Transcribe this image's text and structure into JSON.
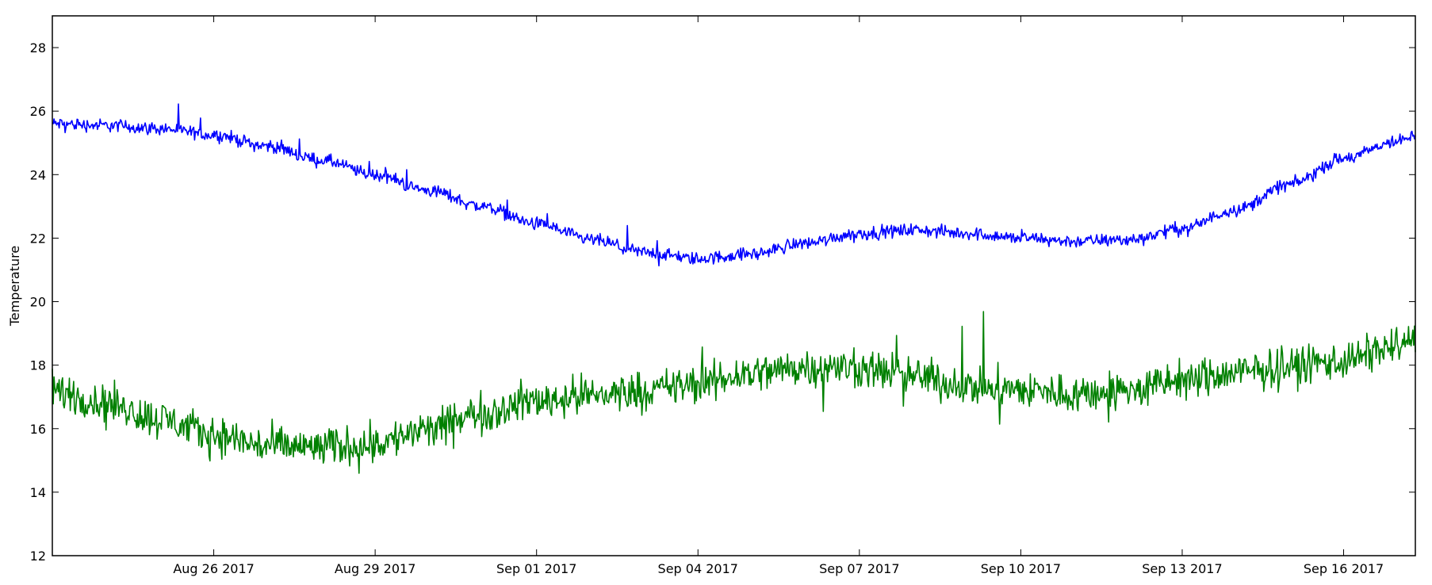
{
  "chart_data": {
    "type": "line",
    "title": "",
    "xlabel": "",
    "ylabel": "Temperature",
    "x_type": "date",
    "xlim": [
      "2017-08-23T00:00",
      "2017-09-17T08:00"
    ],
    "ylim": [
      12,
      29
    ],
    "grid": false,
    "x_ticks": [
      {
        "date": "2017-08-26",
        "label": "Aug 26 2017"
      },
      {
        "date": "2017-08-29",
        "label": "Aug 29 2017"
      },
      {
        "date": "2017-09-01",
        "label": "Sep 01 2017"
      },
      {
        "date": "2017-09-04",
        "label": "Sep 04 2017"
      },
      {
        "date": "2017-09-07",
        "label": "Sep 07 2017"
      },
      {
        "date": "2017-09-10",
        "label": "Sep 10 2017"
      },
      {
        "date": "2017-09-13",
        "label": "Sep 13 2017"
      },
      {
        "date": "2017-09-16",
        "label": "Sep 16 2017"
      }
    ],
    "y_ticks": [
      {
        "value": 12,
        "label": "12"
      },
      {
        "value": 14,
        "label": "14"
      },
      {
        "value": 16,
        "label": "16"
      },
      {
        "value": 18,
        "label": "18"
      },
      {
        "value": 20,
        "label": "20"
      },
      {
        "value": 22,
        "label": "22"
      },
      {
        "value": 24,
        "label": "24"
      },
      {
        "value": 26,
        "label": "26"
      },
      {
        "value": 28,
        "label": "28"
      }
    ],
    "series": [
      {
        "color": "#0000ff",
        "noise": 0.1,
        "x": [
          "2017-08-23T00:00",
          "2017-08-24T00:00",
          "2017-08-25T00:00",
          "2017-08-26T00:00",
          "2017-08-27T00:00",
          "2017-08-28T00:00",
          "2017-08-29T00:00",
          "2017-08-30T00:00",
          "2017-08-31T00:00",
          "2017-09-01T00:00",
          "2017-09-02T00:00",
          "2017-09-03T00:00",
          "2017-09-04T00:00",
          "2017-09-05T00:00",
          "2017-09-06T00:00",
          "2017-09-07T00:00",
          "2017-09-08T00:00",
          "2017-09-09T00:00",
          "2017-09-10T00:00",
          "2017-09-11T00:00",
          "2017-09-12T00:00",
          "2017-09-13T00:00",
          "2017-09-14T00:00",
          "2017-09-15T00:00",
          "2017-09-16T00:00",
          "2017-09-17T00:00",
          "2017-09-17T08:00"
        ],
        "y": [
          25.6,
          25.55,
          25.45,
          25.25,
          24.9,
          24.45,
          24.0,
          23.5,
          23.0,
          22.45,
          21.95,
          21.55,
          21.35,
          21.5,
          21.85,
          22.15,
          22.25,
          22.15,
          22.0,
          21.9,
          21.95,
          22.3,
          22.9,
          23.7,
          24.5,
          25.05,
          25.2
        ]
      },
      {
        "color": "#008000",
        "noise": 0.3,
        "x": [
          "2017-08-23T00:00",
          "2017-08-24T00:00",
          "2017-08-25T00:00",
          "2017-08-26T00:00",
          "2017-08-27T00:00",
          "2017-08-28T00:00",
          "2017-08-29T00:00",
          "2017-08-30T00:00",
          "2017-08-31T00:00",
          "2017-09-01T00:00",
          "2017-09-02T00:00",
          "2017-09-03T00:00",
          "2017-09-04T00:00",
          "2017-09-05T00:00",
          "2017-09-06T00:00",
          "2017-09-07T00:00",
          "2017-09-08T00:00",
          "2017-09-09T00:00",
          "2017-09-10T00:00",
          "2017-09-11T00:00",
          "2017-09-12T00:00",
          "2017-09-13T00:00",
          "2017-09-14T00:00",
          "2017-09-15T00:00",
          "2017-09-16T00:00",
          "2017-09-17T00:00",
          "2017-09-17T08:00"
        ],
        "y": [
          17.2,
          16.8,
          16.3,
          15.8,
          15.45,
          15.4,
          15.55,
          15.95,
          16.5,
          16.9,
          17.05,
          17.2,
          17.4,
          17.75,
          17.95,
          17.9,
          17.65,
          17.35,
          17.2,
          17.1,
          17.2,
          17.5,
          17.75,
          17.95,
          18.15,
          18.6,
          18.8
        ]
      }
    ]
  }
}
